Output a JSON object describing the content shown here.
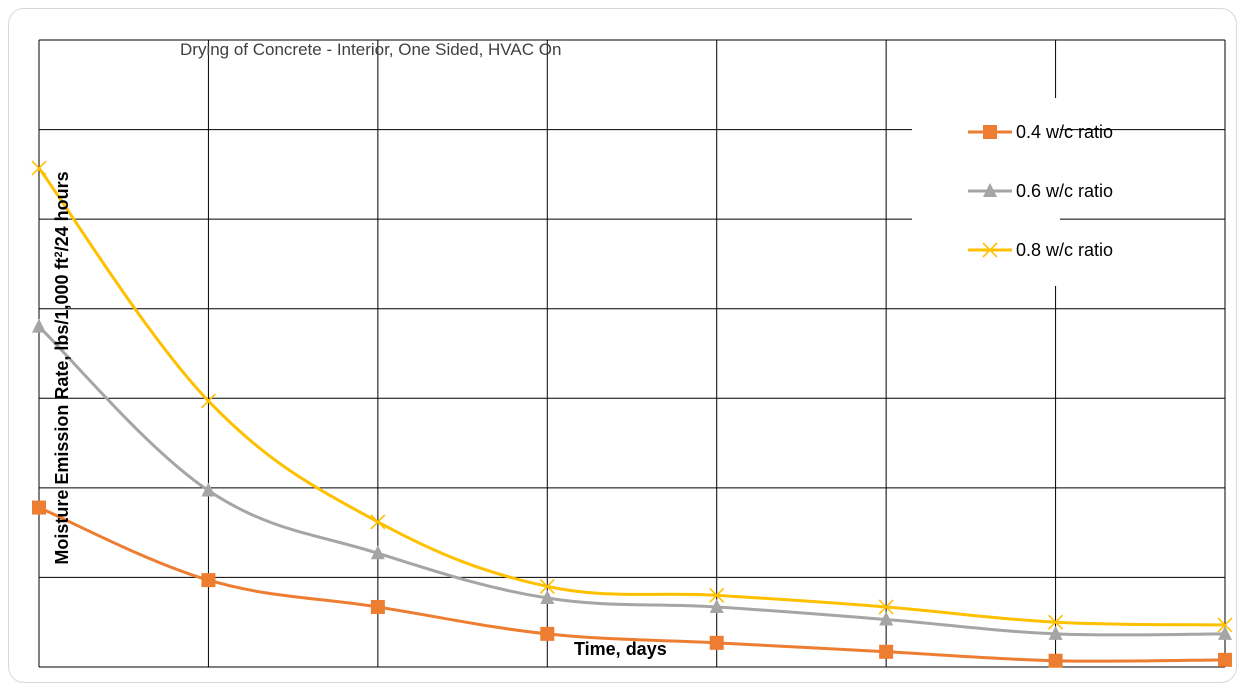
{
  "chart_data": {
    "type": "line",
    "title": "Drying of Concrete - Interior, One Sided, HVAC On",
    "xlabel": "Time, days",
    "ylabel_main": "Moisture Emission Rate, lbs/1,000 ft",
    "ylabel_sup": "2",
    "ylabel_tail": "/24 hours",
    "x": [
      0,
      1,
      2,
      3,
      4,
      5,
      6,
      7
    ],
    "xlim": [
      0,
      7
    ],
    "ylim": [
      0,
      7
    ],
    "tick_labels_visible": false,
    "grid": true,
    "smooth": true,
    "legend_position": "top-right",
    "series": [
      {
        "name": "0.4 w/c ratio",
        "color": "#ED7D31",
        "marker": "square",
        "values": [
          1.78,
          0.97,
          0.67,
          0.37,
          0.27,
          0.17,
          0.07,
          0.08
        ]
      },
      {
        "name": "0.6 w/c ratio",
        "color": "#A5A5A5",
        "marker": "triangle",
        "values": [
          3.8,
          1.97,
          1.27,
          0.77,
          0.67,
          0.53,
          0.37,
          0.37
        ]
      },
      {
        "name": "0.8 w/c ratio",
        "color": "#FFC000",
        "marker": "x",
        "values": [
          5.57,
          2.97,
          1.62,
          0.9,
          0.8,
          0.67,
          0.5,
          0.47
        ]
      }
    ]
  }
}
